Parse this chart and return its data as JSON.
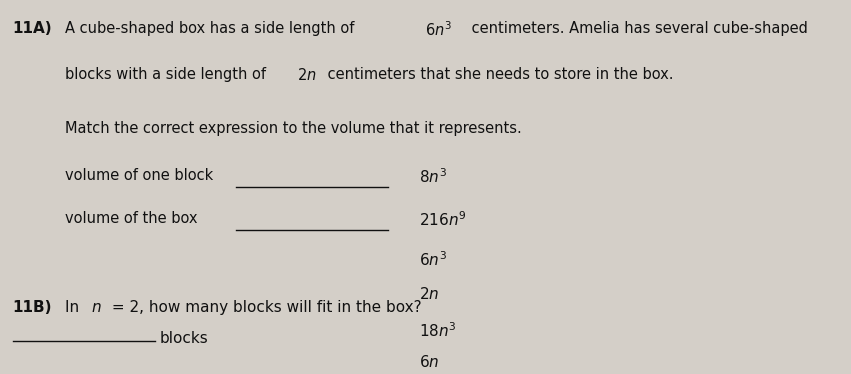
{
  "background_color": "#d4cfc8",
  "fig_width": 8.51,
  "fig_height": 3.74,
  "dpi": 100,
  "text_color": "#111111",
  "line_color": "#111111",
  "part_a_bold": "11A)",
  "part_a_line1_pre": "A cube-shaped box has a side length of ",
  "part_a_line1_math": "$6n^3$",
  "part_a_line1_post": " centimeters. Amelia has several cube-shaped",
  "part_a_line2_pre": "blocks with a side length of ",
  "part_a_line2_math": "$2n$",
  "part_a_line2_post": " centimeters that she needs to store in the box.",
  "match_text": "Match the correct expression to the volume that it represents.",
  "label1": "volume of one block",
  "label2": "volume of the box",
  "options": [
    "$8n^3$",
    "$216n^9$",
    "$6n^3$",
    "$2n$",
    "$18n^3$",
    "$6n$"
  ],
  "part_b_bold": "11B)",
  "part_b_pre": "In ",
  "part_b_math": "$n$",
  "part_b_post": " = 2, how many blocks will fit in the box?",
  "answer_label": "blocks",
  "fs_main": 10.5,
  "fs_bold": 11,
  "fs_options": 11
}
